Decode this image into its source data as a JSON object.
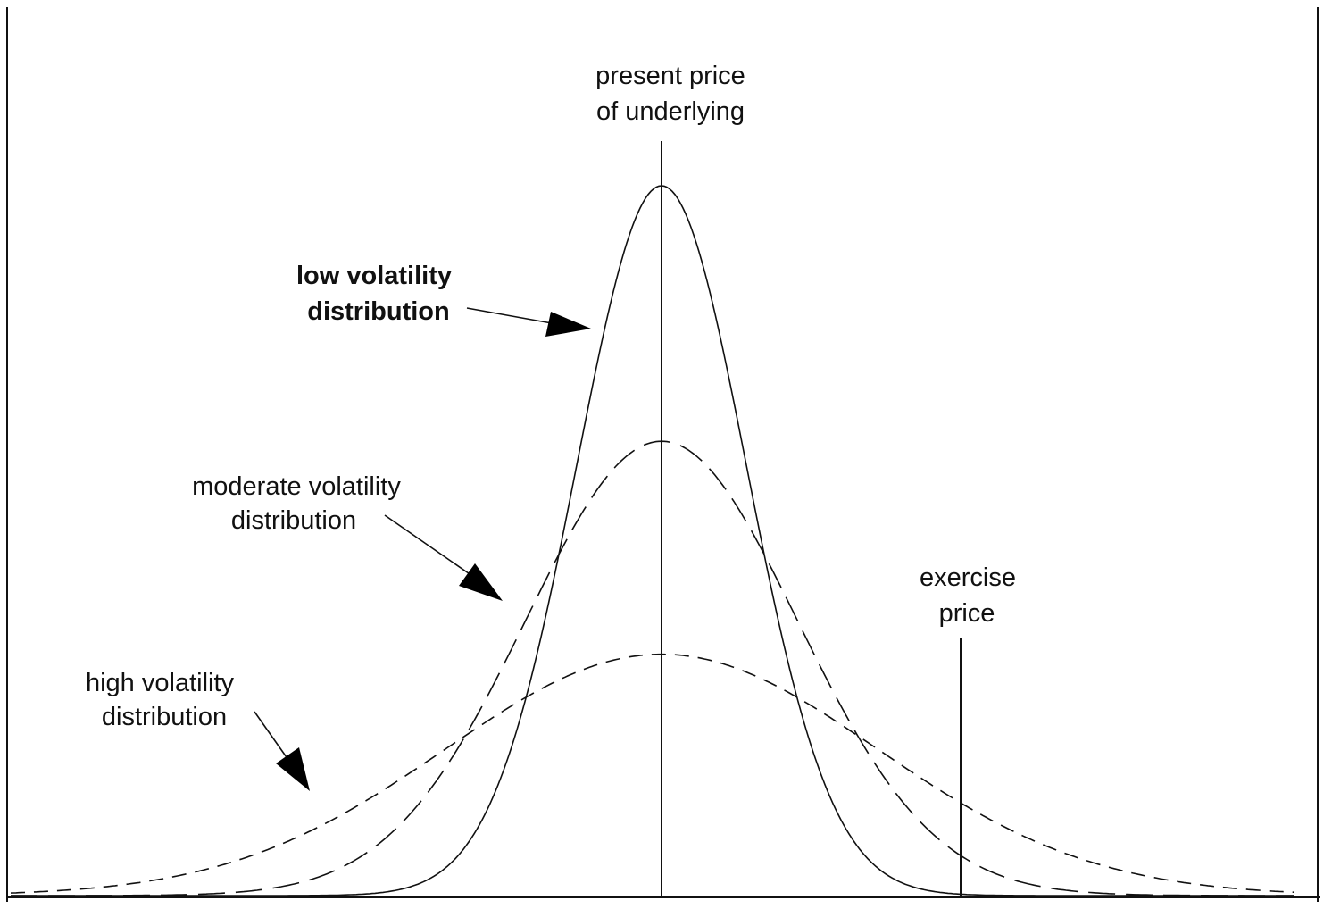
{
  "labels": {
    "present_price": [
      "present price",
      "of underlying"
    ],
    "low_volatility": [
      "low volatility",
      "distribution"
    ],
    "moderate_volatility": [
      "moderate volatility",
      "distribution"
    ],
    "high_volatility": [
      "high volatility",
      "distribution"
    ],
    "exercise_price": [
      "exercise",
      "price"
    ]
  },
  "curves": {
    "low": {
      "relative_sd": 1.0,
      "relative_peak": 1.0,
      "style": "solid"
    },
    "moderate": {
      "relative_sd": 1.6,
      "relative_peak": 0.64,
      "style": "long-dash"
    },
    "high": {
      "relative_sd": 2.55,
      "relative_peak": 0.34,
      "style": "dash"
    }
  },
  "colors": {
    "ink": "#111111",
    "background": "#ffffff"
  }
}
